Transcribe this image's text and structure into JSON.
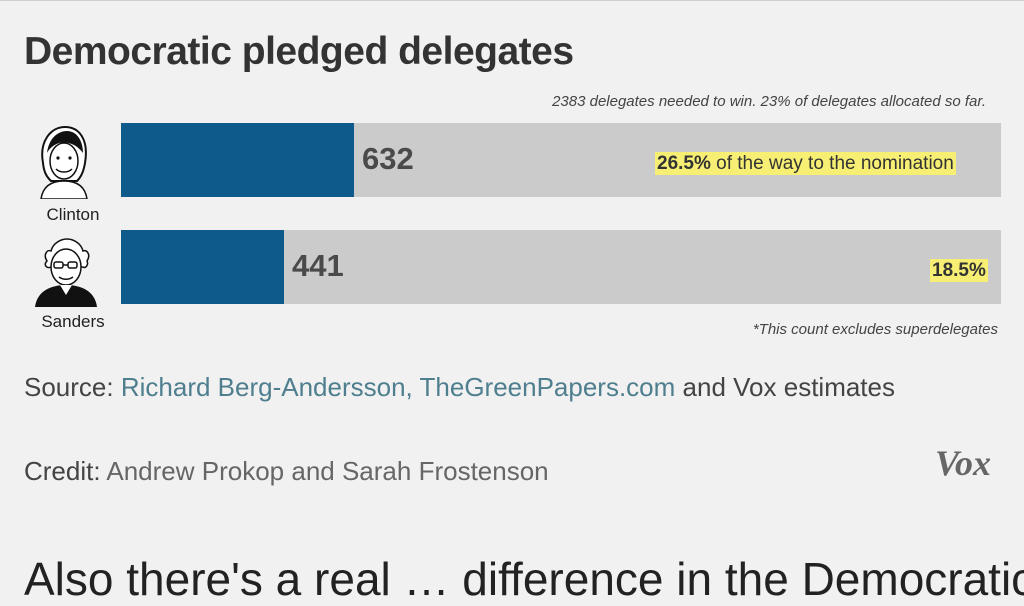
{
  "chart_data": {
    "type": "bar",
    "orientation": "horizontal",
    "title": "Democratic pledged delegates",
    "subtitle": "2383 delegates needed to win. 23% of delegates allocated so far.",
    "categories": [
      "Clinton",
      "Sanders"
    ],
    "values": [
      632,
      441
    ],
    "value_labels": [
      "632",
      "441"
    ],
    "percent_of_nomination": [
      26.5,
      18.5
    ],
    "percent_labels": [
      "26.5%",
      "18.5%"
    ],
    "percent_suffix": " of the way to the nomination",
    "xlim": [
      0,
      2383
    ],
    "footnote": "*This count excludes superdelegates",
    "colors": {
      "bar": "#0e5a8a",
      "track": "#cbcbcb",
      "highlight": "#f6ef74"
    }
  },
  "source": {
    "label": "Source:",
    "link_text": "Richard Berg-Andersson, TheGreenPapers.com",
    "rest": " and Vox estimates"
  },
  "credit": {
    "label": "Credit:",
    "value": "Andrew Prokop and Sarah Frostenson"
  },
  "logo": "Vox",
  "next_text": "Also there's a real … difference in the Democratic"
}
